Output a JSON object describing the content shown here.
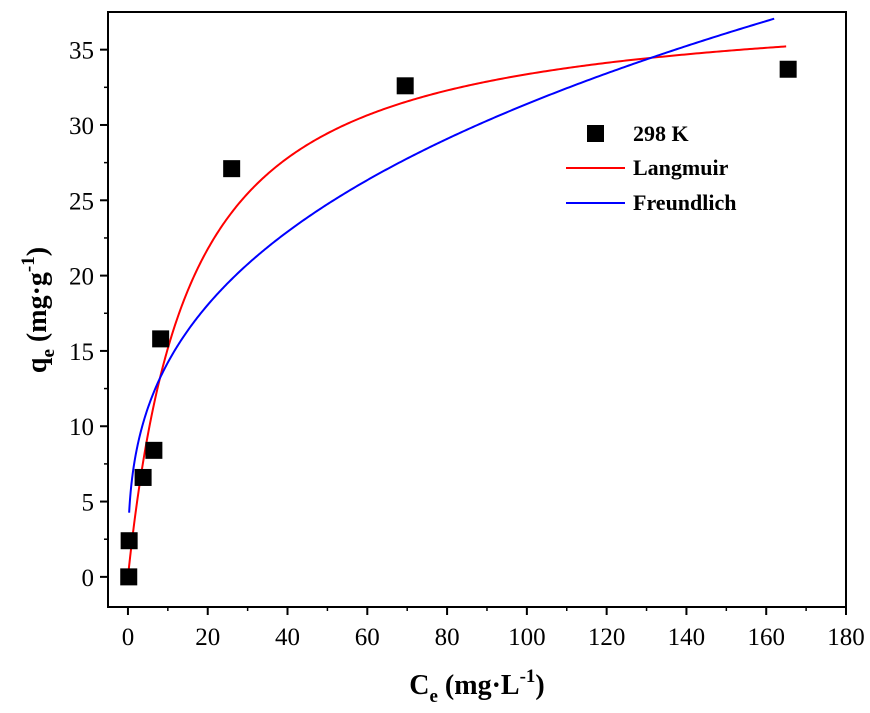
{
  "chart_data": {
    "type": "scatter",
    "xlabel": {
      "main": "C",
      "sub": "e",
      "unit_open": " (mg·L",
      "sup": "-1",
      "unit_close": ")"
    },
    "ylabel": {
      "main": "q",
      "sub": "e",
      "unit_open": " (mg·g",
      "sup": "-1",
      "unit_close": ")"
    },
    "xlim": [
      -5,
      180
    ],
    "ylim": [
      -2,
      37.5
    ],
    "xticks": [
      0,
      20,
      40,
      60,
      80,
      100,
      120,
      140,
      160,
      180
    ],
    "yticks": [
      0,
      5,
      10,
      15,
      20,
      25,
      30,
      35
    ],
    "grid": false,
    "legend_position": "top-right",
    "series": [
      {
        "name": "298 K",
        "kind": "scatter",
        "marker": "square",
        "color": "#000000",
        "x": [
          0.2,
          0.3,
          3.8,
          6.5,
          8.2,
          26.0,
          69.5,
          165.5
        ],
        "y": [
          0.0,
          2.4,
          6.6,
          8.4,
          15.8,
          27.1,
          32.6,
          33.7
        ]
      },
      {
        "name": "Langmuir",
        "kind": "line",
        "color": "#ff0000",
        "model": {
          "qmax": 38.5,
          "KL": 0.065
        },
        "x_range": [
          0.2,
          165
        ]
      },
      {
        "name": "Freundlich",
        "kind": "line",
        "color": "#0000ff",
        "model": {
          "KF": 6.45,
          "n": 2.91
        },
        "x_range": [
          0.3,
          162
        ]
      }
    ]
  }
}
